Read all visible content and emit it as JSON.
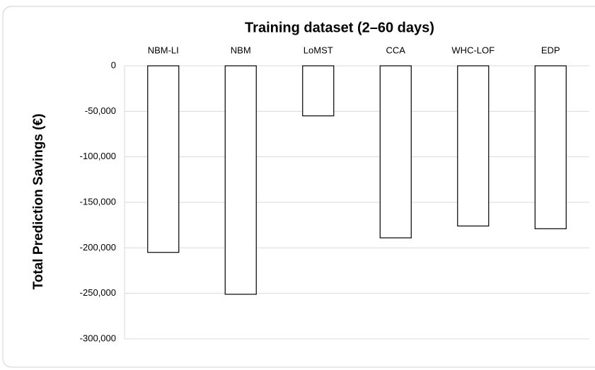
{
  "chart_data": {
    "type": "bar",
    "title": "Training dataset (2–60 days)",
    "y_label": "Total Prediction Savings (€)",
    "categories": [
      "NBM-LI",
      "NBM",
      "LoMST",
      "CCA",
      "WHC-LOF",
      "EDP"
    ],
    "values": [
      -205000,
      -251000,
      -55000,
      -189000,
      -176000,
      -179000
    ],
    "color": "#ffffff",
    "ylim": [
      -300000,
      0
    ],
    "yticks": [
      0,
      {
        "value": -50000,
        "label": "-50,000"
      },
      {
        "value": -100000,
        "label": "-100,000"
      },
      {
        "value": -150000,
        "label": "-150,000"
      },
      {
        "value": -200000,
        "label": "-200,000"
      },
      {
        "value": -250000,
        "label": "-250,000"
      },
      {
        "value": -300000,
        "label": "-300,000"
      }
    ],
    "grid": true
  }
}
